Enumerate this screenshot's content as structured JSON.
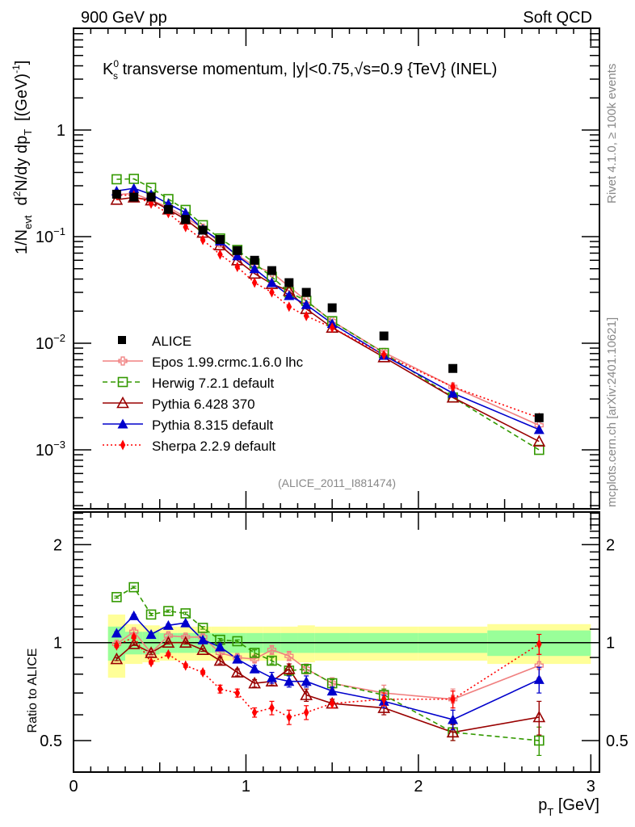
{
  "header": {
    "left": "900 GeV pp",
    "right": "Soft QCD"
  },
  "side_text": {
    "rivet": "Rivet 4.1.0, ≥ 100k events",
    "mcplots": "mcplots.cern.ch [arXiv:2401.10621]"
  },
  "chart_data": [
    {
      "type": "line",
      "panel": "main",
      "title": "K_s^0 transverse momentum, |y|<0.75,√s=0.9 {TeV} (INEL)",
      "title_parts": {
        "k": "K",
        "sup": "0",
        "sub": "s",
        "rest_a": " transverse momentum, |y|<0.75,",
        "sqrt": "√",
        "rest_b": "s=0.9 {TeV} (INEL)"
      },
      "ylabel": "1/N_evt d²N/dy dp_T [(GeV)^-1]",
      "ylabel_parts": {
        "a": "1/N",
        "a_sub": "evt",
        "b": "d",
        "b_sup": "2",
        "c": "N/dy dp",
        "c_sub": "T",
        "d": "[(GeV)",
        "d_sup": "-1",
        "e": "]"
      },
      "yscale": "log",
      "ylim": [
        0.00028,
        9.0
      ],
      "xlim": [
        0,
        3.05
      ],
      "yticks": [
        {
          "v": 1,
          "base": "1",
          "exp": ""
        },
        {
          "v": 0.1,
          "base": "10",
          "exp": "−1"
        },
        {
          "v": 0.01,
          "base": "10",
          "exp": "−2"
        },
        {
          "v": 0.001,
          "base": "10",
          "exp": "−3"
        }
      ],
      "annotation": "(ALICE_2011_I881474)",
      "legend_position": "lower-left",
      "x": [
        0.25,
        0.35,
        0.45,
        0.55,
        0.65,
        0.75,
        0.85,
        0.95,
        1.05,
        1.15,
        1.25,
        1.35,
        1.5,
        1.8,
        2.2,
        2.7
      ],
      "data": {
        "name": "ALICE",
        "values": [
          0.25,
          0.235,
          0.235,
          0.18,
          0.145,
          0.115,
          0.094,
          0.074,
          0.06,
          0.048,
          0.037,
          0.03,
          0.0215,
          0.0117,
          0.0058,
          0.002
        ]
      },
      "series": [
        {
          "name": "Epos 1.99.crmc.1.6.0 lhc",
          "color": "#f08080",
          "dash": "",
          "marker": "open-cross",
          "values": [
            0.248,
            0.254,
            0.219,
            0.189,
            0.151,
            0.12,
            0.087,
            0.067,
            0.053,
            0.046,
            0.034,
            0.025,
            0.0161,
            0.0082,
            0.0039,
            0.0017
          ]
        },
        {
          "name": "Herwig 7.2.1 default",
          "color": "#339900",
          "dash": "6,4",
          "marker": "open-square",
          "values": [
            0.345,
            0.348,
            0.287,
            0.225,
            0.178,
            0.128,
            0.096,
            0.075,
            0.056,
            0.042,
            0.03,
            0.025,
            0.0161,
            0.0081,
            0.0031,
            0.001
          ]
        },
        {
          "name": "Pythia 6.428 370",
          "color": "#990000",
          "dash": "",
          "marker": "open-triangle",
          "values": [
            0.222,
            0.233,
            0.219,
            0.18,
            0.145,
            0.109,
            0.083,
            0.06,
            0.045,
            0.036,
            0.031,
            0.021,
            0.014,
            0.0074,
            0.0031,
            0.0012
          ]
        },
        {
          "name": "Pythia 8.315 default",
          "color": "#0000cc",
          "dash": "",
          "marker": "filled-triangle",
          "values": [
            0.268,
            0.284,
            0.249,
            0.203,
            0.167,
            0.117,
            0.091,
            0.066,
            0.05,
            0.037,
            0.028,
            0.023,
            0.0153,
            0.0077,
            0.0034,
            0.00155
          ]
        },
        {
          "name": "Sherpa 2.2.9 default",
          "color": "#ff0000",
          "dash": "2,3",
          "marker": "filled-diamond",
          "values": [
            0.245,
            0.244,
            0.204,
            0.166,
            0.123,
            0.093,
            0.068,
            0.052,
            0.037,
            0.03,
            0.022,
            0.018,
            0.014,
            0.0078,
            0.0039,
            0.002
          ]
        }
      ]
    },
    {
      "type": "line",
      "panel": "ratio",
      "ylabel": "Ratio to ALICE",
      "xlabel": "p_T [GeV]",
      "xlabel_parts": {
        "a": "p",
        "a_sub": "T",
        "b": " [GeV]"
      },
      "yscale": "log",
      "ylim": [
        0.4,
        2.52
      ],
      "xlim": [
        0,
        3.05
      ],
      "xticks": [
        {
          "v": 0,
          "label": "0"
        },
        {
          "v": 1,
          "label": "1"
        },
        {
          "v": 2,
          "label": "2"
        },
        {
          "v": 3,
          "label": "3"
        }
      ],
      "yticks": [
        {
          "v": 0.5,
          "label": "0.5"
        },
        {
          "v": 1,
          "label": "1"
        },
        {
          "v": 2,
          "label": "2"
        }
      ],
      "uncertainty_bands": {
        "bin_edges": [
          0.2,
          0.3,
          0.4,
          0.5,
          0.6,
          0.7,
          0.8,
          0.9,
          1.0,
          1.1,
          1.2,
          1.3,
          1.4,
          1.6,
          2.0,
          2.4,
          3.0
        ],
        "inner_half_width": [
          0.12,
          0.08,
          0.08,
          0.07,
          0.07,
          0.07,
          0.07,
          0.07,
          0.07,
          0.07,
          0.07,
          0.07,
          0.07,
          0.07,
          0.07,
          0.09
        ],
        "outer_half_width": [
          0.22,
          0.14,
          0.13,
          0.12,
          0.12,
          0.12,
          0.12,
          0.12,
          0.12,
          0.12,
          0.12,
          0.13,
          0.12,
          0.12,
          0.12,
          0.14
        ],
        "inner_color": "#99ff99",
        "outer_color": "#ffff99"
      },
      "x": [
        0.25,
        0.35,
        0.45,
        0.55,
        0.65,
        0.75,
        0.85,
        0.95,
        1.05,
        1.15,
        1.25,
        1.35,
        1.5,
        1.8,
        2.2,
        2.7
      ],
      "series": [
        {
          "name": "Epos 1.99.crmc.1.6.0 lhc",
          "color": "#f08080",
          "dash": "",
          "marker": "open-cross",
          "values": [
            0.99,
            1.08,
            0.93,
            1.05,
            1.04,
            1.04,
            0.93,
            0.9,
            0.89,
            0.95,
            0.91,
            0.83,
            0.75,
            0.7,
            0.67,
            0.85
          ],
          "errors": [
            0.02,
            0.02,
            0.02,
            0.02,
            0.02,
            0.02,
            0.02,
            0.02,
            0.02,
            0.03,
            0.03,
            0.03,
            0.03,
            0.04,
            0.05,
            0.07
          ]
        },
        {
          "name": "Herwig 7.2.1 default",
          "color": "#339900",
          "dash": "6,4",
          "marker": "open-square",
          "values": [
            1.38,
            1.48,
            1.22,
            1.25,
            1.23,
            1.11,
            1.02,
            1.01,
            0.93,
            0.88,
            0.82,
            0.83,
            0.75,
            0.69,
            0.53,
            0.5
          ],
          "errors": [
            0.01,
            0.01,
            0.01,
            0.01,
            0.01,
            0.01,
            0.01,
            0.01,
            0.02,
            0.02,
            0.02,
            0.02,
            0.02,
            0.03,
            0.03,
            0.05
          ]
        },
        {
          "name": "Pythia 6.428 370",
          "color": "#990000",
          "dash": "",
          "marker": "open-triangle",
          "values": [
            0.89,
            0.99,
            0.93,
            1.0,
            1.0,
            0.95,
            0.88,
            0.81,
            0.75,
            0.76,
            0.83,
            0.69,
            0.65,
            0.63,
            0.53,
            0.59
          ],
          "errors": [
            0.01,
            0.01,
            0.01,
            0.01,
            0.01,
            0.01,
            0.02,
            0.02,
            0.02,
            0.02,
            0.03,
            0.03,
            0.02,
            0.03,
            0.03,
            0.07
          ]
        },
        {
          "name": "Pythia 8.315 default",
          "color": "#0000cc",
          "dash": "",
          "marker": "filled-triangle",
          "values": [
            1.07,
            1.21,
            1.06,
            1.13,
            1.15,
            1.02,
            0.97,
            0.89,
            0.83,
            0.78,
            0.76,
            0.76,
            0.71,
            0.66,
            0.58,
            0.77
          ],
          "errors": [
            0.01,
            0.01,
            0.01,
            0.01,
            0.01,
            0.01,
            0.02,
            0.02,
            0.02,
            0.03,
            0.03,
            0.03,
            0.02,
            0.03,
            0.04,
            0.07
          ]
        },
        {
          "name": "Sherpa 2.2.9 default",
          "color": "#ff0000",
          "dash": "2,3",
          "marker": "filled-diamond",
          "values": [
            0.98,
            1.04,
            0.87,
            0.92,
            0.85,
            0.81,
            0.72,
            0.7,
            0.61,
            0.63,
            0.59,
            0.61,
            0.65,
            0.67,
            0.67,
            0.99
          ],
          "errors": [
            0.01,
            0.01,
            0.01,
            0.01,
            0.01,
            0.01,
            0.02,
            0.02,
            0.02,
            0.03,
            0.03,
            0.03,
            0.02,
            0.03,
            0.04,
            0.07
          ]
        }
      ]
    }
  ]
}
